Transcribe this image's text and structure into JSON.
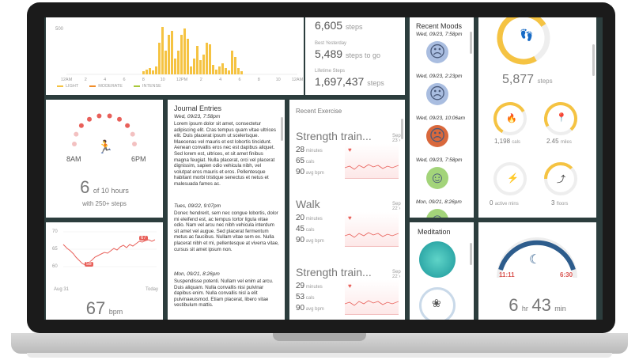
{
  "hourly_chart": {
    "y_label": "500",
    "x_ticks": [
      "12AM",
      "2",
      "4",
      "6",
      "8",
      "10",
      "12PM",
      "2",
      "4",
      "6",
      "8",
      "10",
      "12AM"
    ],
    "legend": [
      "LIGHT",
      "MODERATE",
      "INTENSE"
    ],
    "colors": {
      "light": "#f5c342",
      "moderate": "#f08c28",
      "intense": "#a8c83c"
    }
  },
  "steps": {
    "today_value": "6,605",
    "today_unit": "steps",
    "best_label": "Best Yesterday",
    "best_value": "5,489",
    "best_unit": "steps to go",
    "lifetime_label": "Lifetime Steps",
    "lifetime_value": "1,697,437",
    "lifetime_unit": "steps"
  },
  "moods": {
    "title": "Recent Moods",
    "entries": [
      {
        "date": "Wed, 09/23, 7:58pm",
        "mood": "sad",
        "color": "#a9bde0"
      },
      {
        "date": "Wed, 09/23, 2:23pm",
        "mood": "sad",
        "color": "#a9bde0"
      },
      {
        "date": "Wed, 09/23, 10:06am",
        "mood": "angry",
        "color": "#d9683c"
      },
      {
        "date": "Wed, 09/23, 7:58pm",
        "mood": "happy",
        "color": "#a3d47a"
      },
      {
        "date": "Mon, 09/21, 8:26pm",
        "mood": "happy",
        "color": "#a3d47a"
      }
    ]
  },
  "goals": {
    "main_value": "5,877",
    "main_unit": "steps",
    "calories_value": "1,198",
    "calories_unit": "cals",
    "distance_value": "2.45",
    "distance_unit": "miles",
    "active_value": "0",
    "active_unit": "active mins",
    "floors_value": "3",
    "floors_unit": "floors"
  },
  "hourly_activity": {
    "start": "8AM",
    "end": "6PM",
    "value": "6",
    "of_label": "of 10 hours",
    "sub_label": "with 250+ steps"
  },
  "journal": {
    "title": "Journal Entries",
    "entries": [
      {
        "date": "Wed, 09/23, 7:58pm",
        "text": "Lorem ipsum dolor sit amet, consectetur adipiscing elit. Cras tempus quam vitae ultrices elit. Duis placerat ipsum ut scelerisque. Maecenas vel mauris et est lobortis tincidunt. Aenean convallis eros nec est dapibus aliquet. Sed lorem est, ultrices, et sit amet finibus magna feugiat. Nulla placerat, orci vel placerat dignissim, sapien odio vehicula nibh, vel volutpat eros mauris et eros. Pellentesque habitant morbi tristique senectus et netus et malesuada fames ac."
      },
      {
        "date": "Tues, 09/22, 9:07pm",
        "text": "Donec hendrerit, sem nec congue lobortis, dolor mi eleifend est, ac tempus tortor ligula vitae odio. Nam vel arcu nec nibh vehicula interdum sit amet vel augue. Sed placerat fermentum metus ac faucibus. Nullam vitae sem ex. Nulla placerat nibh et mi, pellentesque at viverra vitae, cursus sit amet ipsum non."
      },
      {
        "date": "Mon, 09/21, 8:26pm",
        "text": "Suspendisse potenti. Nullam vel enim at arcu. Duis aliquam. Nulla convallis nisi pulvinar dapibus enim. Nulla convallis nisl a elit pulvinaeuismod. Etiam placerat, libero vitae vestibulum mattis."
      }
    ]
  },
  "exercise": {
    "title": "Recent Exercise",
    "items": [
      {
        "name": "Strength train...",
        "date": "Sep 23",
        "minutes": "28",
        "cals": "65",
        "bpm": "90"
      },
      {
        "name": "Walk",
        "date": "Sep 22",
        "minutes": "20",
        "cals": "45",
        "bpm": "90"
      },
      {
        "name": "Strength train...",
        "date": "Sep 22",
        "minutes": "29",
        "cals": "53",
        "bpm": "90"
      }
    ],
    "minutes_unit": "minutes",
    "cals_unit": "cals",
    "bpm_unit": "avg bpm"
  },
  "heart": {
    "y_ticks": [
      "70",
      "65",
      "60"
    ],
    "x_start": "Aug 31",
    "x_end": "Today",
    "high_badge": "67",
    "low_badge": "58",
    "value": "67",
    "unit": "bpm"
  },
  "meditation": {
    "title": "Meditation"
  },
  "sleep": {
    "start": "11:11",
    "end": "6:30",
    "hours": "6",
    "hours_unit": "hr",
    "minutes": "43",
    "minutes_unit": "min"
  }
}
